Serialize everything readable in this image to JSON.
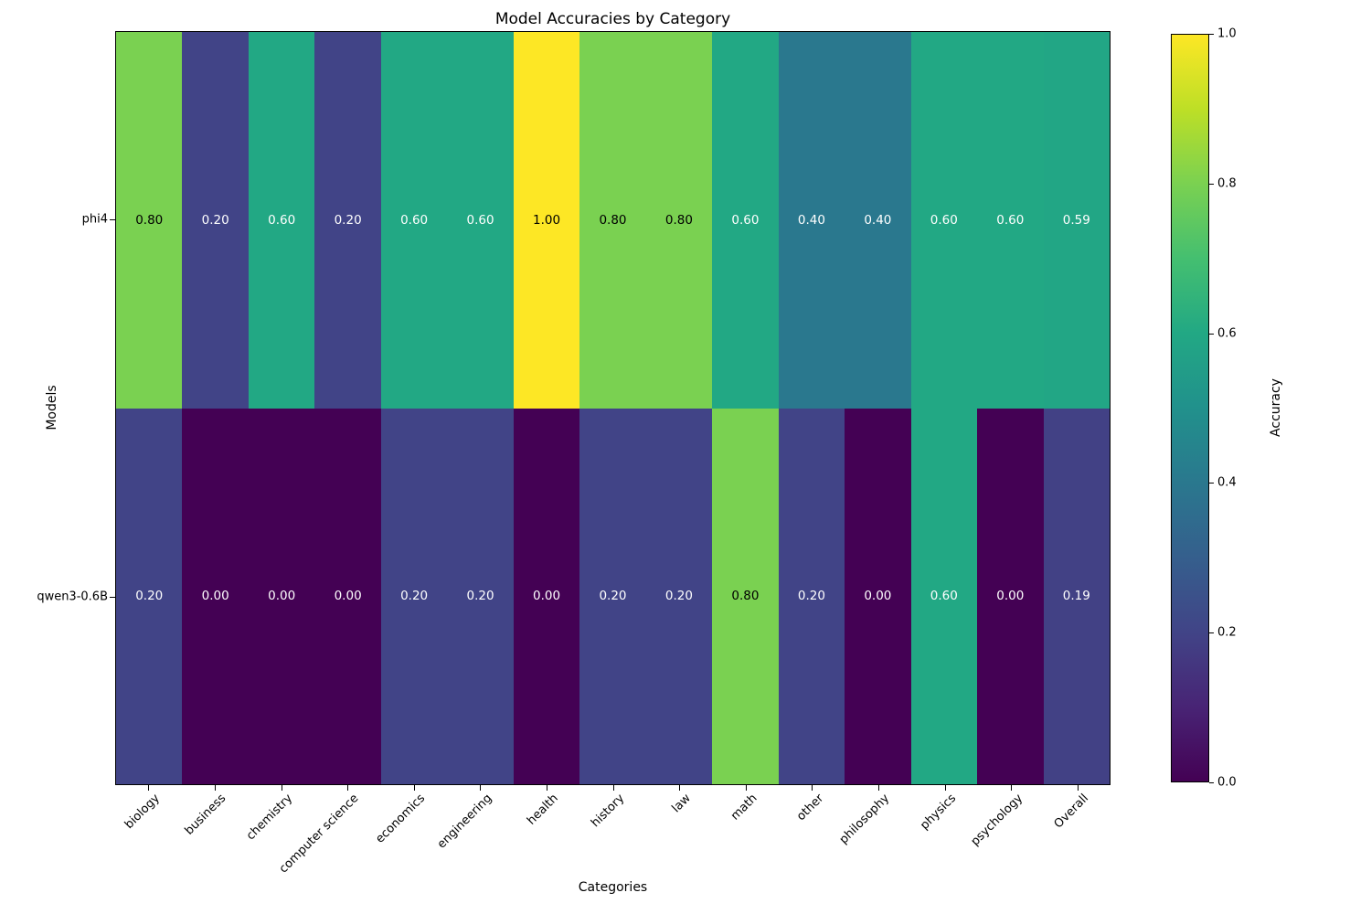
{
  "chart_data": {
    "type": "heatmap",
    "title": "Model Accuracies by Category",
    "xlabel": "Categories",
    "ylabel": "Models",
    "categories": [
      "biology",
      "business",
      "chemistry",
      "computer science",
      "economics",
      "engineering",
      "health",
      "history",
      "law",
      "math",
      "other",
      "philosophy",
      "physics",
      "psychology",
      "Overall"
    ],
    "series": [
      {
        "name": "phi4",
        "values": [
          0.8,
          0.2,
          0.6,
          0.2,
          0.6,
          0.6,
          1.0,
          0.8,
          0.8,
          0.6,
          0.4,
          0.4,
          0.6,
          0.6,
          0.59
        ]
      },
      {
        "name": "qwen3-0.6B",
        "values": [
          0.2,
          0.0,
          0.0,
          0.0,
          0.2,
          0.2,
          0.0,
          0.2,
          0.2,
          0.8,
          0.2,
          0.0,
          0.6,
          0.0,
          0.19
        ]
      }
    ],
    "value_decimals": 2,
    "vmin": 0.0,
    "vmax": 1.0,
    "grid": false,
    "colorbar": {
      "label": "Accuracy",
      "ticks": [
        "0.0",
        "0.2",
        "0.4",
        "0.6",
        "0.8",
        "1.0"
      ],
      "position": "right"
    },
    "colormap": {
      "name": "viridis",
      "stops": [
        "#440154",
        "#482475",
        "#414487",
        "#355f8d",
        "#2a788e",
        "#21918c",
        "#22a884",
        "#44bf70",
        "#7ad151",
        "#bddf26",
        "#fde725"
      ]
    },
    "annotation_text_colors": {
      "dark": "#000000",
      "light": "#ffffff",
      "dark_text_threshold": 0.7
    }
  }
}
